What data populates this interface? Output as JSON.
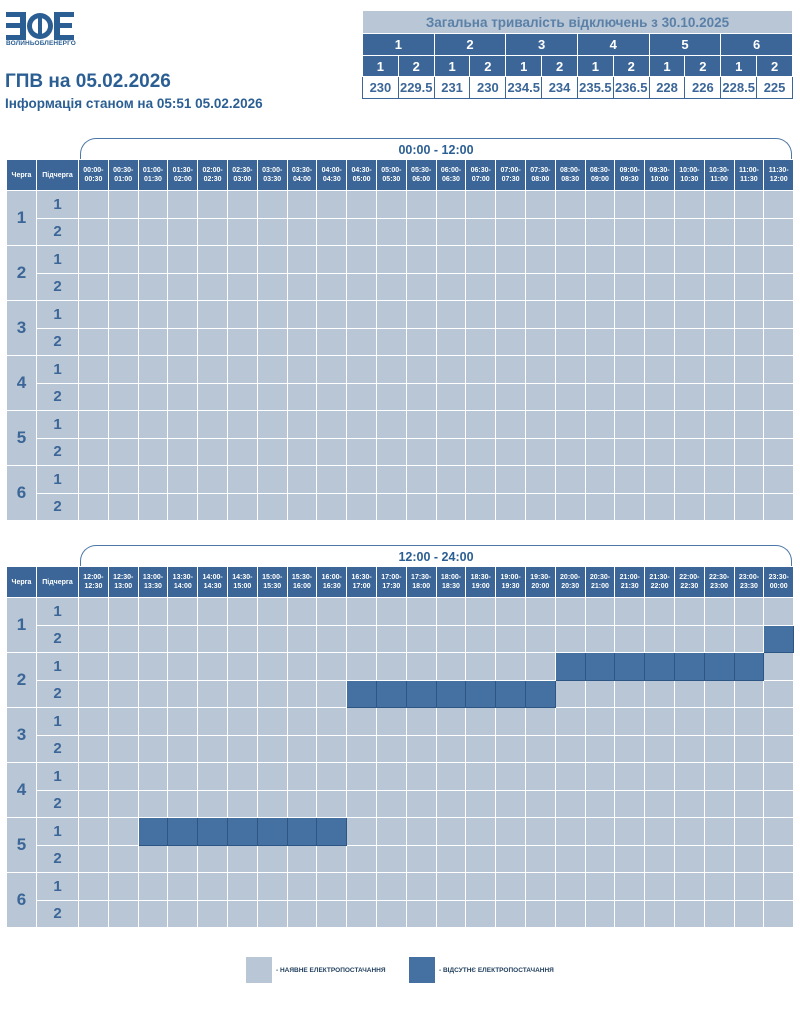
{
  "logo_text": "ВОЛИНЬОБЛЕНЕРГО",
  "title": "ГПВ на 05.02.2026",
  "subtitle": "Інформація станом на 05:51 05.02.2026",
  "summary": {
    "header": "Загальна тривалість відключень з 30.10.2025",
    "groups": [
      "1",
      "2",
      "3",
      "4",
      "5",
      "6"
    ],
    "subgroups": [
      "1",
      "2",
      "1",
      "2",
      "1",
      "2",
      "1",
      "2",
      "1",
      "2",
      "1",
      "2"
    ],
    "values": [
      "230",
      "229.5",
      "231",
      "230",
      "234.5",
      "234",
      "235.5",
      "236.5",
      "228",
      "226",
      "228.5",
      "225"
    ]
  },
  "grid_headers": {
    "queue": "Черга",
    "subqueue": "Підчерга"
  },
  "queues": [
    "1",
    "2",
    "3",
    "4",
    "5",
    "6"
  ],
  "subqueues": [
    "1",
    "2"
  ],
  "periods": [
    {
      "label": "00:00 - 12:00",
      "slots": [
        "00:00-00:30",
        "00:30-01:00",
        "01:00-01:30",
        "01:30-02:00",
        "02:00-02:30",
        "02:30-03:00",
        "03:00-03:30",
        "03:30-04:00",
        "04:00-04:30",
        "04:30-05:00",
        "05:00-05:30",
        "05:30-06:00",
        "06:00-06:30",
        "06:30-07:00",
        "07:00-07:30",
        "07:30-08:00",
        "08:00-08:30",
        "08:30-09:00",
        "09:00-09:30",
        "09:30-10:00",
        "10:00-10:30",
        "10:30-11:00",
        "11:00-11:30",
        "11:30-12:00"
      ],
      "outages": []
    },
    {
      "label": "12:00 - 24:00",
      "slots": [
        "12:00-12:30",
        "12:30-13:00",
        "13:00-13:30",
        "13:30-14:00",
        "14:00-14:30",
        "14:30-15:00",
        "15:00-15:30",
        "15:30-16:00",
        "16:00-16:30",
        "16:30-17:00",
        "17:00-17:30",
        "17:30-18:00",
        "18:00-18:30",
        "18:30-19:00",
        "19:00-19:30",
        "19:30-20:00",
        "20:00-20:30",
        "20:30-21:00",
        "21:00-21:30",
        "21:30-22:00",
        "22:00-22:30",
        "22:30-23:00",
        "23:00-23:30",
        "23:30-00:00"
      ],
      "outages": [
        {
          "queue": "1",
          "sub": "2",
          "slots": [
            23
          ]
        },
        {
          "queue": "2",
          "sub": "1",
          "slots": [
            16,
            17,
            18,
            19,
            20,
            21,
            22
          ]
        },
        {
          "queue": "2",
          "sub": "2",
          "slots": [
            9,
            10,
            11,
            12,
            13,
            14,
            15
          ]
        },
        {
          "queue": "5",
          "sub": "1",
          "slots": [
            2,
            3,
            4,
            5,
            6,
            7,
            8
          ]
        }
      ]
    }
  ],
  "legend": {
    "available": "- НАЯВНЕ ЕЛЕКТРОПОСТАЧАННЯ",
    "absent": "- ВІДСУТНЄ ЕЛЕКТРОПОСТАЧАННЯ",
    "available_color": "#b8c6d6",
    "absent_color": "#4570a2"
  }
}
